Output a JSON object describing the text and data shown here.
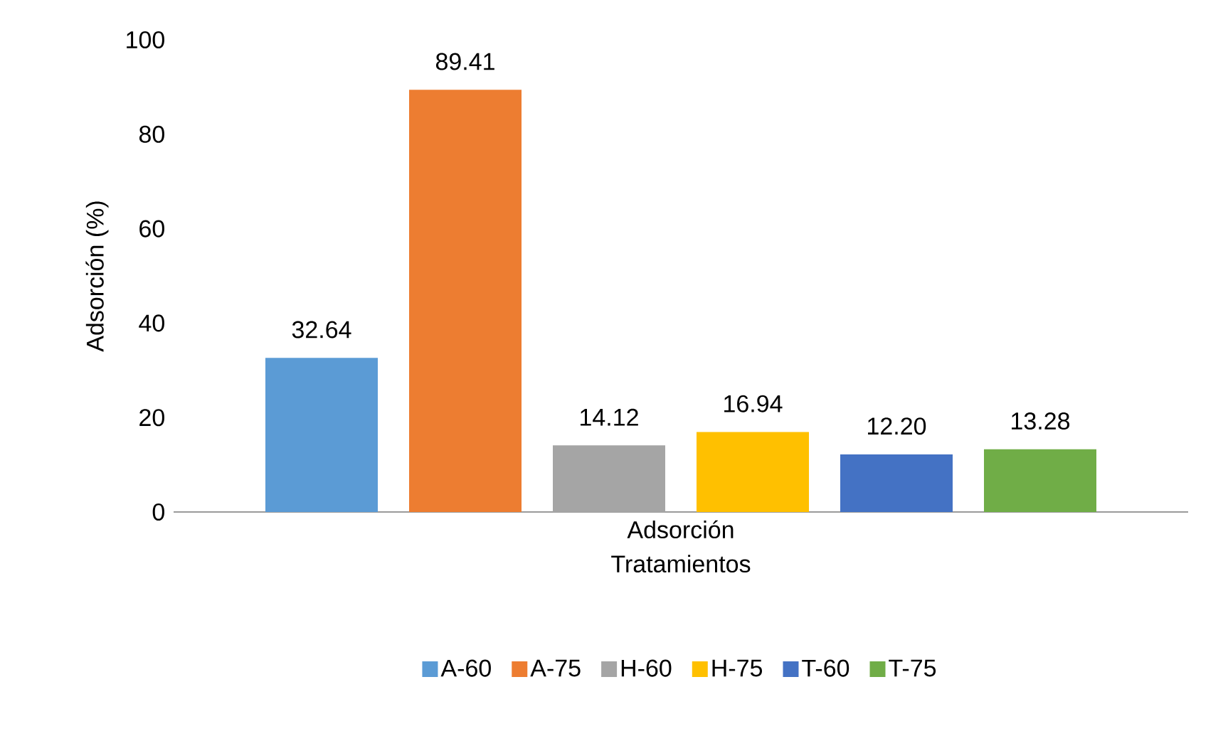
{
  "chart_data": {
    "type": "bar",
    "categories": [
      "Adsorción"
    ],
    "xlabel": "Tratamientos",
    "ylabel": "Adsorción (%)",
    "ylim": [
      0,
      100
    ],
    "yticks": [
      0,
      20,
      40,
      60,
      80,
      100
    ],
    "legend": "bottom",
    "series": [
      {
        "name": "A-60",
        "color": "#5b9bd5",
        "values": [
          32.64
        ],
        "value_labels": [
          "32.64"
        ]
      },
      {
        "name": "A-75",
        "color": "#ed7d31",
        "values": [
          89.41
        ],
        "value_labels": [
          "89.41"
        ]
      },
      {
        "name": "H-60",
        "color": "#a5a5a5",
        "values": [
          14.12
        ],
        "value_labels": [
          "14.12"
        ]
      },
      {
        "name": "H-75",
        "color": "#ffc000",
        "values": [
          16.94
        ],
        "value_labels": [
          "16.94"
        ]
      },
      {
        "name": "T-60",
        "color": "#4472c4",
        "values": [
          12.2
        ],
        "value_labels": [
          "12.20"
        ]
      },
      {
        "name": "T-75",
        "color": "#70ad47",
        "values": [
          13.28
        ],
        "value_labels": [
          "13.28"
        ]
      }
    ]
  }
}
